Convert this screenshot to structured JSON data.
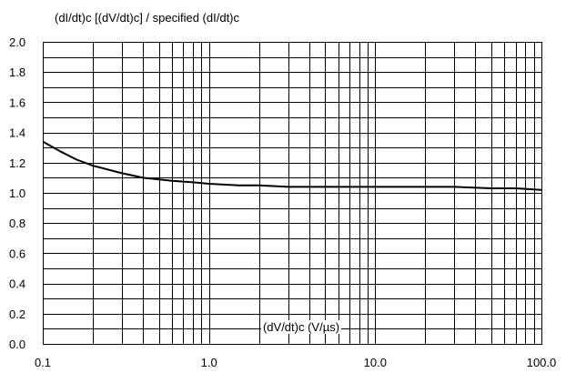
{
  "chart_data": {
    "type": "line",
    "title": "(dI/dt)c [(dV/dt)c] / specified (dI/dt)c",
    "xlabel": "(dV/dt)c (V/µs)",
    "ylabel": "",
    "x_scale": "log",
    "xlim": [
      0.1,
      100
    ],
    "ylim": [
      0,
      2.0
    ],
    "grid": true,
    "x_ticks": [
      "0.1",
      "1.0",
      "10.0",
      "100.0"
    ],
    "y_ticks": [
      "0.0",
      "0.2",
      "0.4",
      "0.6",
      "0.8",
      "1.0",
      "1.2",
      "1.4",
      "1.6",
      "1.8",
      "2.0"
    ],
    "series": [
      {
        "name": "",
        "x": [
          0.1,
          0.13,
          0.16,
          0.2,
          0.3,
          0.4,
          0.6,
          0.8,
          1.0,
          1.5,
          2.0,
          3.0,
          5.0,
          10.0,
          20.0,
          30.0,
          50.0,
          70.0,
          100.0
        ],
        "y": [
          1.34,
          1.27,
          1.22,
          1.18,
          1.13,
          1.1,
          1.08,
          1.07,
          1.06,
          1.05,
          1.05,
          1.04,
          1.04,
          1.04,
          1.04,
          1.04,
          1.03,
          1.03,
          1.02
        ]
      }
    ]
  }
}
